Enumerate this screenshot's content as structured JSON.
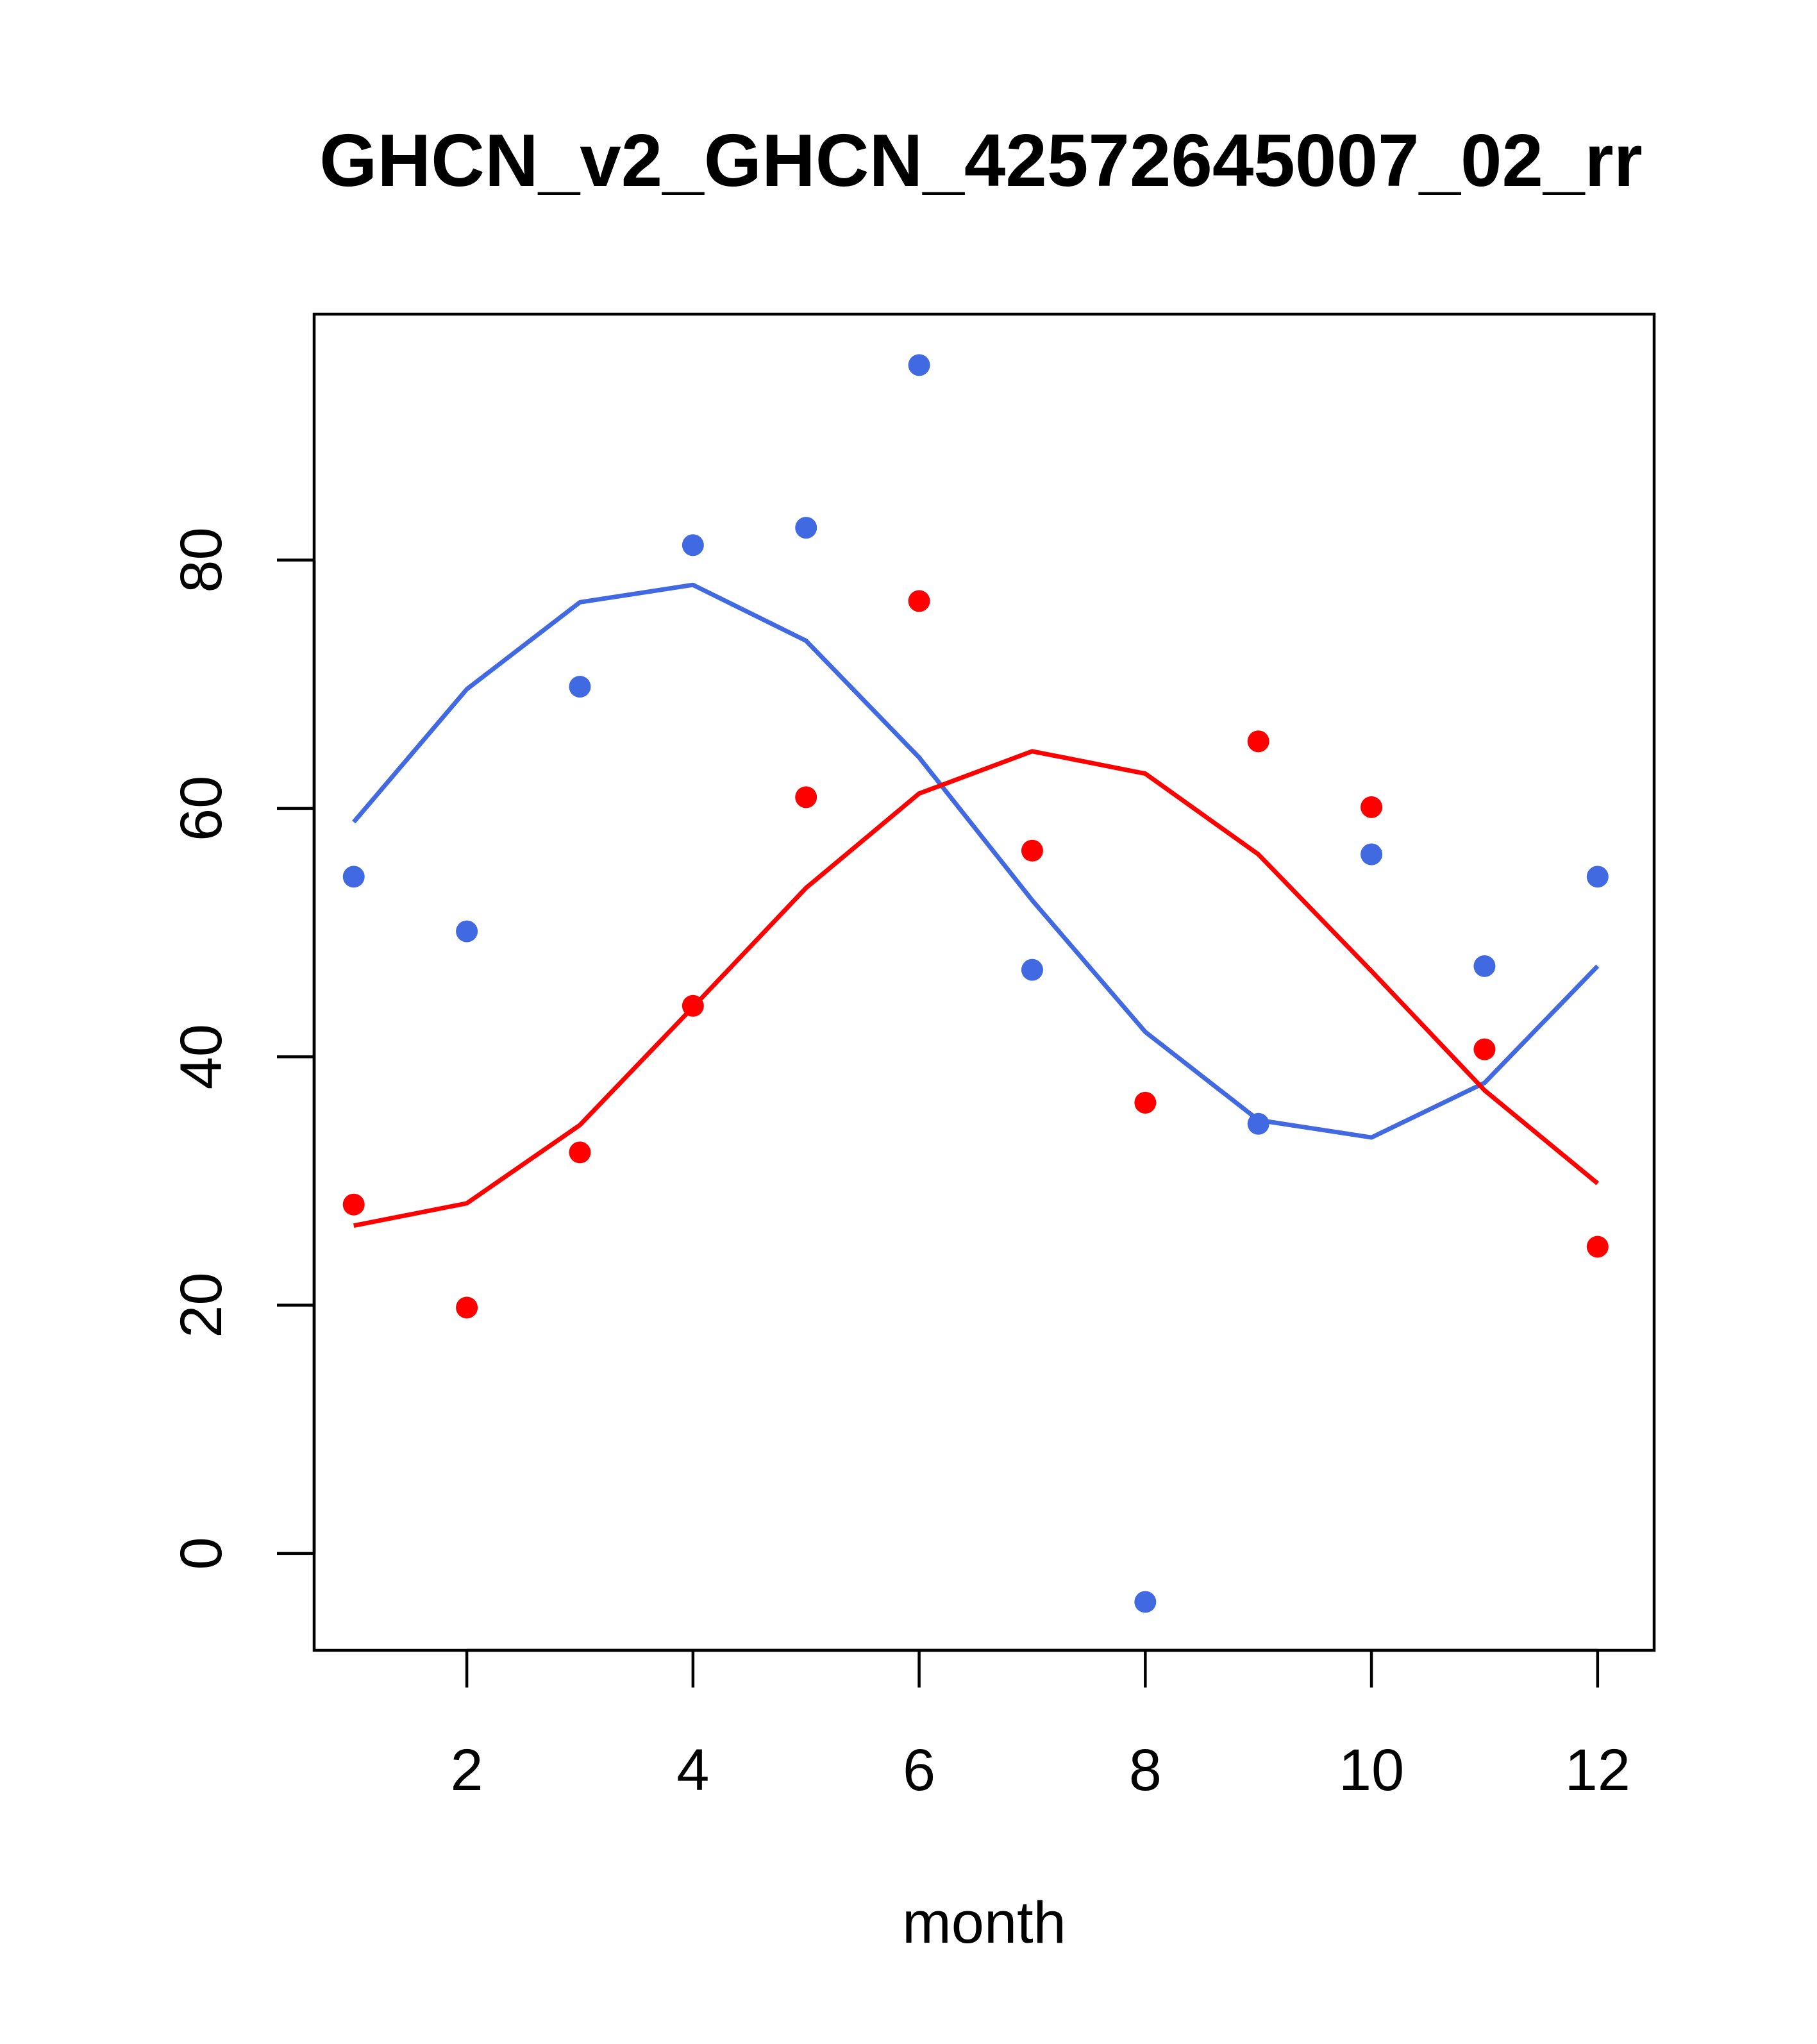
{
  "chart_data": {
    "type": "line",
    "title": "GHCN_v2_GHCN_42572645007_02_rr",
    "xlabel": "month",
    "ylabel": "",
    "xlim": [
      0.65,
      12.5
    ],
    "ylim": [
      -7.8,
      99.8
    ],
    "x_ticks": [
      2,
      4,
      6,
      8,
      10,
      12
    ],
    "y_ticks": [
      0,
      20,
      40,
      60,
      80
    ],
    "grid": false,
    "legend": "none",
    "x": [
      1,
      2,
      3,
      4,
      5,
      6,
      7,
      8,
      9,
      10,
      11,
      12
    ],
    "series": [
      {
        "color": "#4169E1",
        "points": [
          54.5,
          50.1,
          69.8,
          81.2,
          82.6,
          95.7,
          47.0,
          -3.9,
          34.6,
          56.3,
          47.3,
          54.5
        ],
        "curve": [
          58.9,
          69.6,
          76.6,
          78.0,
          73.5,
          64.1,
          52.6,
          42.0,
          34.9,
          33.5,
          37.9,
          47.3
        ]
      },
      {
        "color": "#FF0000",
        "points": [
          28.1,
          19.8,
          32.3,
          44.1,
          60.9,
          76.7,
          56.6,
          36.3,
          65.4,
          60.1,
          40.6,
          24.7
        ],
        "curve": [
          26.4,
          28.2,
          34.5,
          44.0,
          53.6,
          61.2,
          64.6,
          62.8,
          56.3,
          46.9,
          37.3,
          29.8
        ]
      }
    ]
  }
}
